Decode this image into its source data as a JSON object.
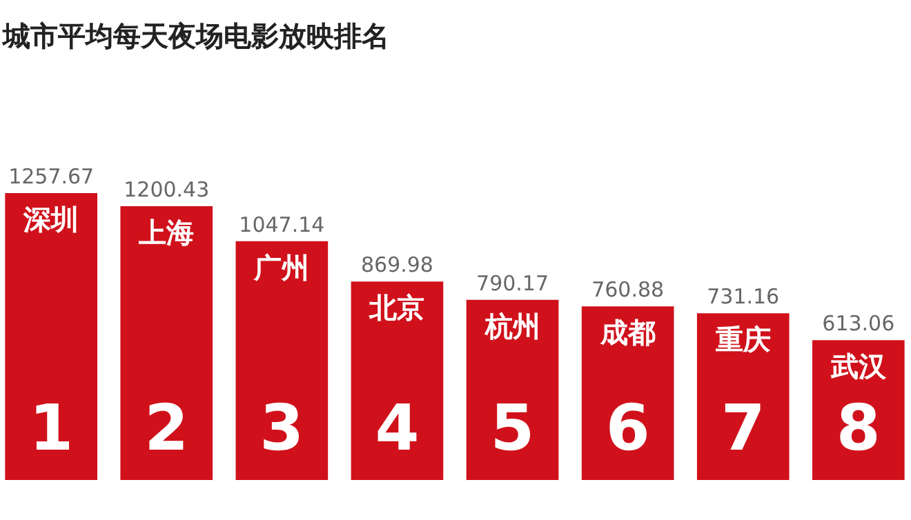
{
  "chart_data": {
    "type": "bar",
    "title": "城市平均每天夜场电影放映排名",
    "categories": [
      "深圳",
      "上海",
      "广州",
      "北京",
      "杭州",
      "成都",
      "重庆",
      "武汉"
    ],
    "values": [
      1257.67,
      1200.43,
      1047.14,
      869.98,
      790.17,
      760.88,
      731.16,
      613.06
    ],
    "color": "#d0111b",
    "data_labels": true,
    "tick_labels": false,
    "grid": false,
    "annotations": [
      "1",
      "2",
      "3",
      "4",
      "5",
      "6",
      "7",
      "8"
    ]
  }
}
